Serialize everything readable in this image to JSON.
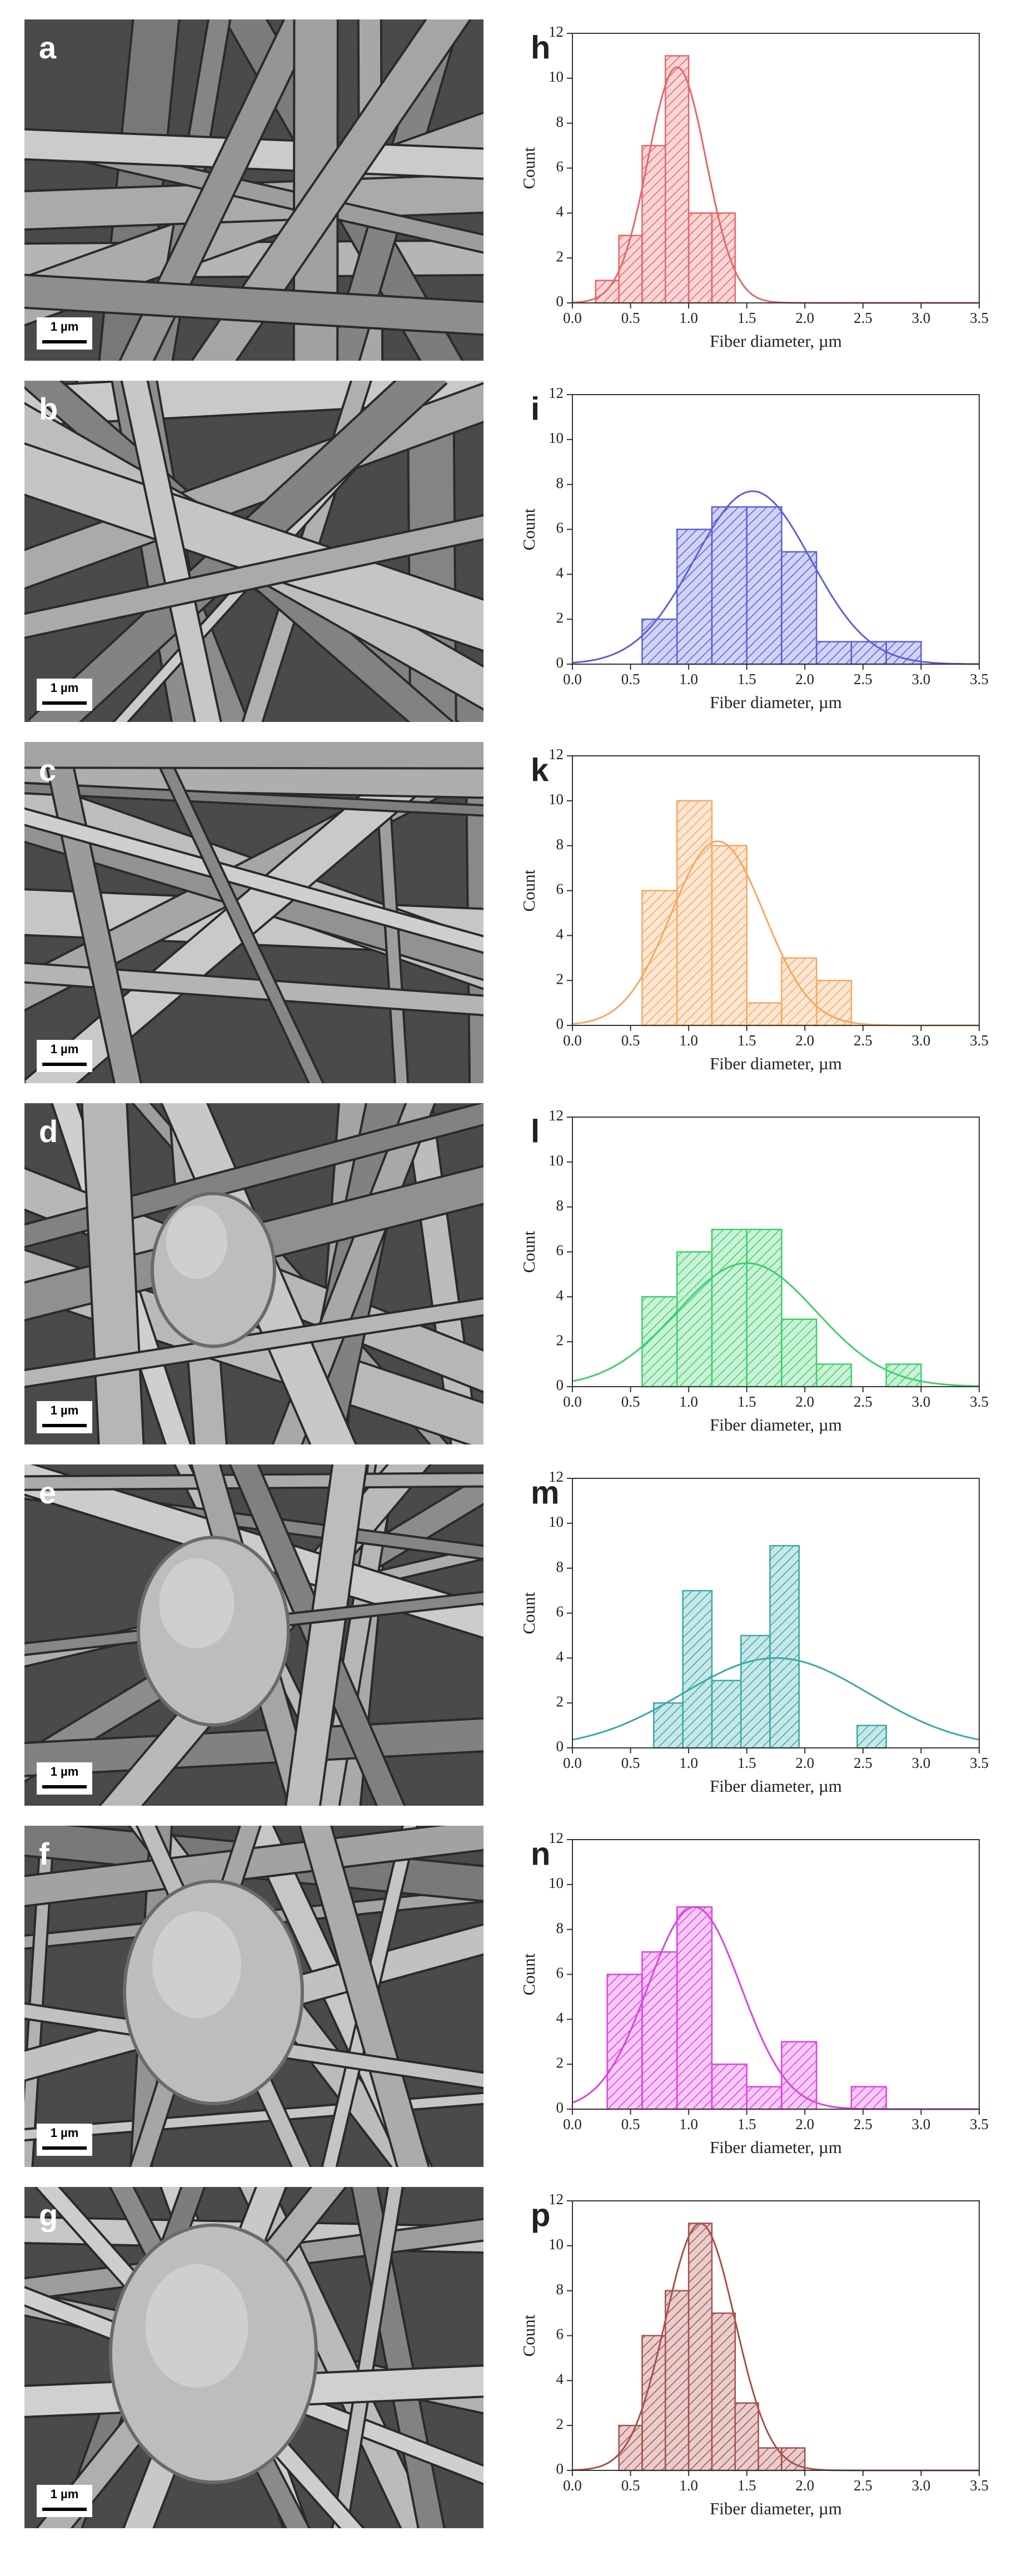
{
  "panels": [
    {
      "label": "a",
      "scale_bar": "1 µm"
    },
    {
      "label": "b",
      "scale_bar": "1 µm"
    },
    {
      "label": "c",
      "scale_bar": "1 µm"
    },
    {
      "label": "d",
      "scale_bar": "1 µm"
    },
    {
      "label": "e",
      "scale_bar": "1 µm"
    },
    {
      "label": "f",
      "scale_bar": "1 µm"
    },
    {
      "label": "g",
      "scale_bar": "1 µm"
    }
  ],
  "chart_data": [
    {
      "type": "histogram",
      "label": "h",
      "xlabel": "Fiber diameter, µm",
      "ylabel": "Count",
      "color": "#e8666a",
      "bins": [
        0.2,
        0.4,
        0.6,
        0.8,
        1.0,
        1.2,
        1.4
      ],
      "counts": [
        1,
        3,
        7,
        11,
        4,
        4
      ],
      "fit": {
        "mean": 0.9,
        "sd": 0.25,
        "peak": 10.5
      },
      "xlim": [
        0,
        3.5
      ],
      "xticks": [
        {
          "value": 0,
          "label": "0.0"
        },
        0.5,
        {
          "value": 1,
          "label": "1.0"
        },
        1.5,
        {
          "value": 2,
          "label": "2.0"
        },
        2.5,
        {
          "value": 3,
          "label": "3.0"
        },
        3.5
      ],
      "ylim": [
        0,
        12
      ],
      "yticks": [
        0,
        2,
        4,
        6,
        8,
        10,
        12
      ]
    },
    {
      "type": "histogram",
      "label": "i",
      "xlabel": "Fiber diameter, µm",
      "ylabel": "Count",
      "color": "#5a5fd6",
      "bins": [
        0.6,
        0.9,
        1.2,
        1.5,
        1.8,
        2.1,
        2.4,
        2.7,
        3.0
      ],
      "counts": [
        2,
        6,
        7,
        7,
        5,
        1,
        1,
        1
      ],
      "fit": {
        "mean": 1.55,
        "sd": 0.5,
        "peak": 7.7
      },
      "xlim": [
        0,
        3.5
      ],
      "xticks": [
        {
          "value": 0,
          "label": "0.0"
        },
        0.5,
        {
          "value": 1,
          "label": "1.0"
        },
        1.5,
        {
          "value": 2,
          "label": "2.0"
        },
        2.5,
        {
          "value": 3,
          "label": "3.0"
        },
        3.5
      ],
      "ylim": [
        0,
        12
      ],
      "yticks": [
        0,
        2,
        4,
        6,
        8,
        10,
        12
      ]
    },
    {
      "type": "histogram",
      "label": "k",
      "xlabel": "Fiber diameter, µm",
      "ylabel": "Count",
      "color": "#f5a860",
      "bins": [
        0.6,
        0.9,
        1.2,
        1.5,
        1.8,
        2.1,
        2.4
      ],
      "counts": [
        6,
        10,
        8,
        1,
        3,
        2
      ],
      "fit": {
        "mean": 1.25,
        "sd": 0.4,
        "peak": 8.2
      },
      "xlim": [
        0,
        3.5
      ],
      "xticks": [
        {
          "value": 0,
          "label": "0.0"
        },
        0.5,
        {
          "value": 1,
          "label": "1.0"
        },
        1.5,
        {
          "value": 2,
          "label": "2.0"
        },
        2.5,
        {
          "value": 3,
          "label": "3.0"
        },
        3.5
      ],
      "ylim": [
        0,
        12
      ],
      "yticks": [
        0,
        2,
        4,
        6,
        8,
        10,
        12
      ]
    },
    {
      "type": "histogram",
      "label": "l",
      "xlabel": "Fiber diameter, µm",
      "ylabel": "Count",
      "color": "#3ecf6a",
      "bins": [
        0.6,
        0.9,
        1.2,
        1.5,
        1.8,
        2.1,
        2.4,
        2.7,
        3.0
      ],
      "counts": [
        4,
        6,
        7,
        7,
        3,
        1,
        0,
        1
      ],
      "fit": {
        "mean": 1.5,
        "sd": 0.6,
        "peak": 5.5
      },
      "xlim": [
        0,
        3.5
      ],
      "xticks": [
        {
          "value": 0,
          "label": "0.0"
        },
        0.5,
        {
          "value": 1,
          "label": "1.0"
        },
        1.5,
        {
          "value": 2,
          "label": "2.0"
        },
        2.5,
        {
          "value": 3,
          "label": "3.0"
        },
        3.5
      ],
      "ylim": [
        0,
        12
      ],
      "yticks": [
        0,
        2,
        4,
        6,
        8,
        10,
        12
      ]
    },
    {
      "type": "histogram",
      "label": "m",
      "xlabel": "Fiber diameter, µm",
      "ylabel": "Count",
      "color": "#3aa8a8",
      "bins": [
        0.7,
        0.95,
        1.2,
        1.45,
        1.7,
        1.95,
        2.2,
        2.45,
        2.7
      ],
      "counts": [
        2,
        7,
        3,
        5,
        9,
        0,
        0,
        1
      ],
      "fit": {
        "mean": 1.75,
        "sd": 0.8,
        "peak": 4
      },
      "xlim": [
        0,
        3.5
      ],
      "xticks": [
        {
          "value": 0,
          "label": "0.0"
        },
        0.5,
        {
          "value": 1,
          "label": "1.0"
        },
        1.5,
        {
          "value": 2,
          "label": "2.0"
        },
        2.5,
        {
          "value": 3,
          "label": "3.0"
        },
        3.5
      ],
      "ylim": [
        0,
        12
      ],
      "yticks": [
        0,
        2,
        4,
        6,
        8,
        10,
        12
      ]
    },
    {
      "type": "histogram",
      "label": "n",
      "xlabel": "Fiber diameter, µm",
      "ylabel": "Count",
      "color": "#e040e0",
      "bins": [
        0.3,
        0.6,
        0.9,
        1.2,
        1.5,
        1.8,
        2.1,
        2.4,
        2.7
      ],
      "counts": [
        6,
        7,
        9,
        2,
        1,
        3,
        0,
        1
      ],
      "fit": {
        "mean": 1.05,
        "sd": 0.4,
        "peak": 9
      },
      "xlim": [
        0,
        3.5
      ],
      "xticks": [
        {
          "value": 0,
          "label": "0.0"
        },
        0.5,
        {
          "value": 1,
          "label": "1.0"
        },
        1.5,
        {
          "value": 2,
          "label": "2.0"
        },
        2.5,
        {
          "value": 3,
          "label": "3.0"
        },
        3.5
      ],
      "ylim": [
        0,
        12
      ],
      "yticks": [
        0,
        2,
        4,
        6,
        8,
        10,
        12
      ]
    },
    {
      "type": "histogram",
      "label": "p",
      "xlabel": "Fiber diameter, µm",
      "ylabel": "Count",
      "color": "#a8504a",
      "bins": [
        0.4,
        0.6,
        0.8,
        1.0,
        1.2,
        1.4,
        1.6,
        1.8,
        2.0
      ],
      "counts": [
        2,
        6,
        8,
        11,
        7,
        3,
        1,
        1
      ],
      "fit": {
        "mean": 1.1,
        "sd": 0.3,
        "peak": 11
      },
      "xlim": [
        0,
        3.5
      ],
      "xticks": [
        {
          "value": 0,
          "label": "0.0"
        },
        0.5,
        {
          "value": 1,
          "label": "1.0"
        },
        1.5,
        {
          "value": 2,
          "label": "2.0"
        },
        2.5,
        {
          "value": 3,
          "label": "3.0"
        },
        3.5
      ],
      "ylim": [
        0,
        12
      ],
      "yticks": [
        0,
        2,
        4,
        6,
        8,
        10,
        12
      ]
    }
  ]
}
